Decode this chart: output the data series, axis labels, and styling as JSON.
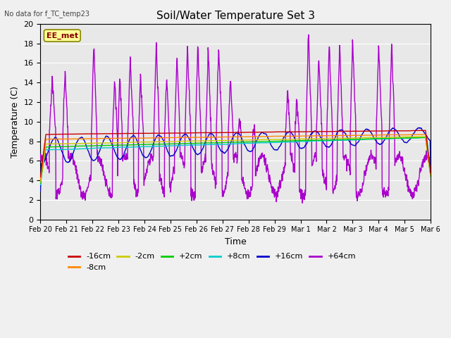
{
  "title": "Soil/Water Temperature Set 3",
  "xlabel": "Time",
  "ylabel": "Temperature (C)",
  "note": "No data for f_TC_temp23",
  "annotation": "EE_met",
  "ylim": [
    0,
    20
  ],
  "background_color": "#e8e8e8",
  "fig_bg": "#f0f0f0",
  "series_colors": {
    "-16cm": "#cc0000",
    "-8cm": "#ff8800",
    "-2cm": "#cccc00",
    "+2cm": "#00cc00",
    "+8cm": "#00cccc",
    "+16cm": "#0000cc",
    "+64cm": "#aa00cc"
  },
  "xtick_labels": [
    "Feb 20",
    "Feb 21",
    "Feb 22",
    "Feb 23",
    "Feb 24",
    "Feb 25",
    "Feb 26",
    "Feb 27",
    "Feb 28",
    "Feb 29",
    "Mar 1",
    "Mar 2",
    "Mar 3",
    "Mar 4",
    "Mar 5",
    "Mar 6"
  ],
  "ytick_labels": [
    "0",
    "2",
    "4",
    "6",
    "8",
    "10",
    "12",
    "14",
    "16",
    "18",
    "20"
  ],
  "n_days": 15,
  "n_pts": 1440
}
